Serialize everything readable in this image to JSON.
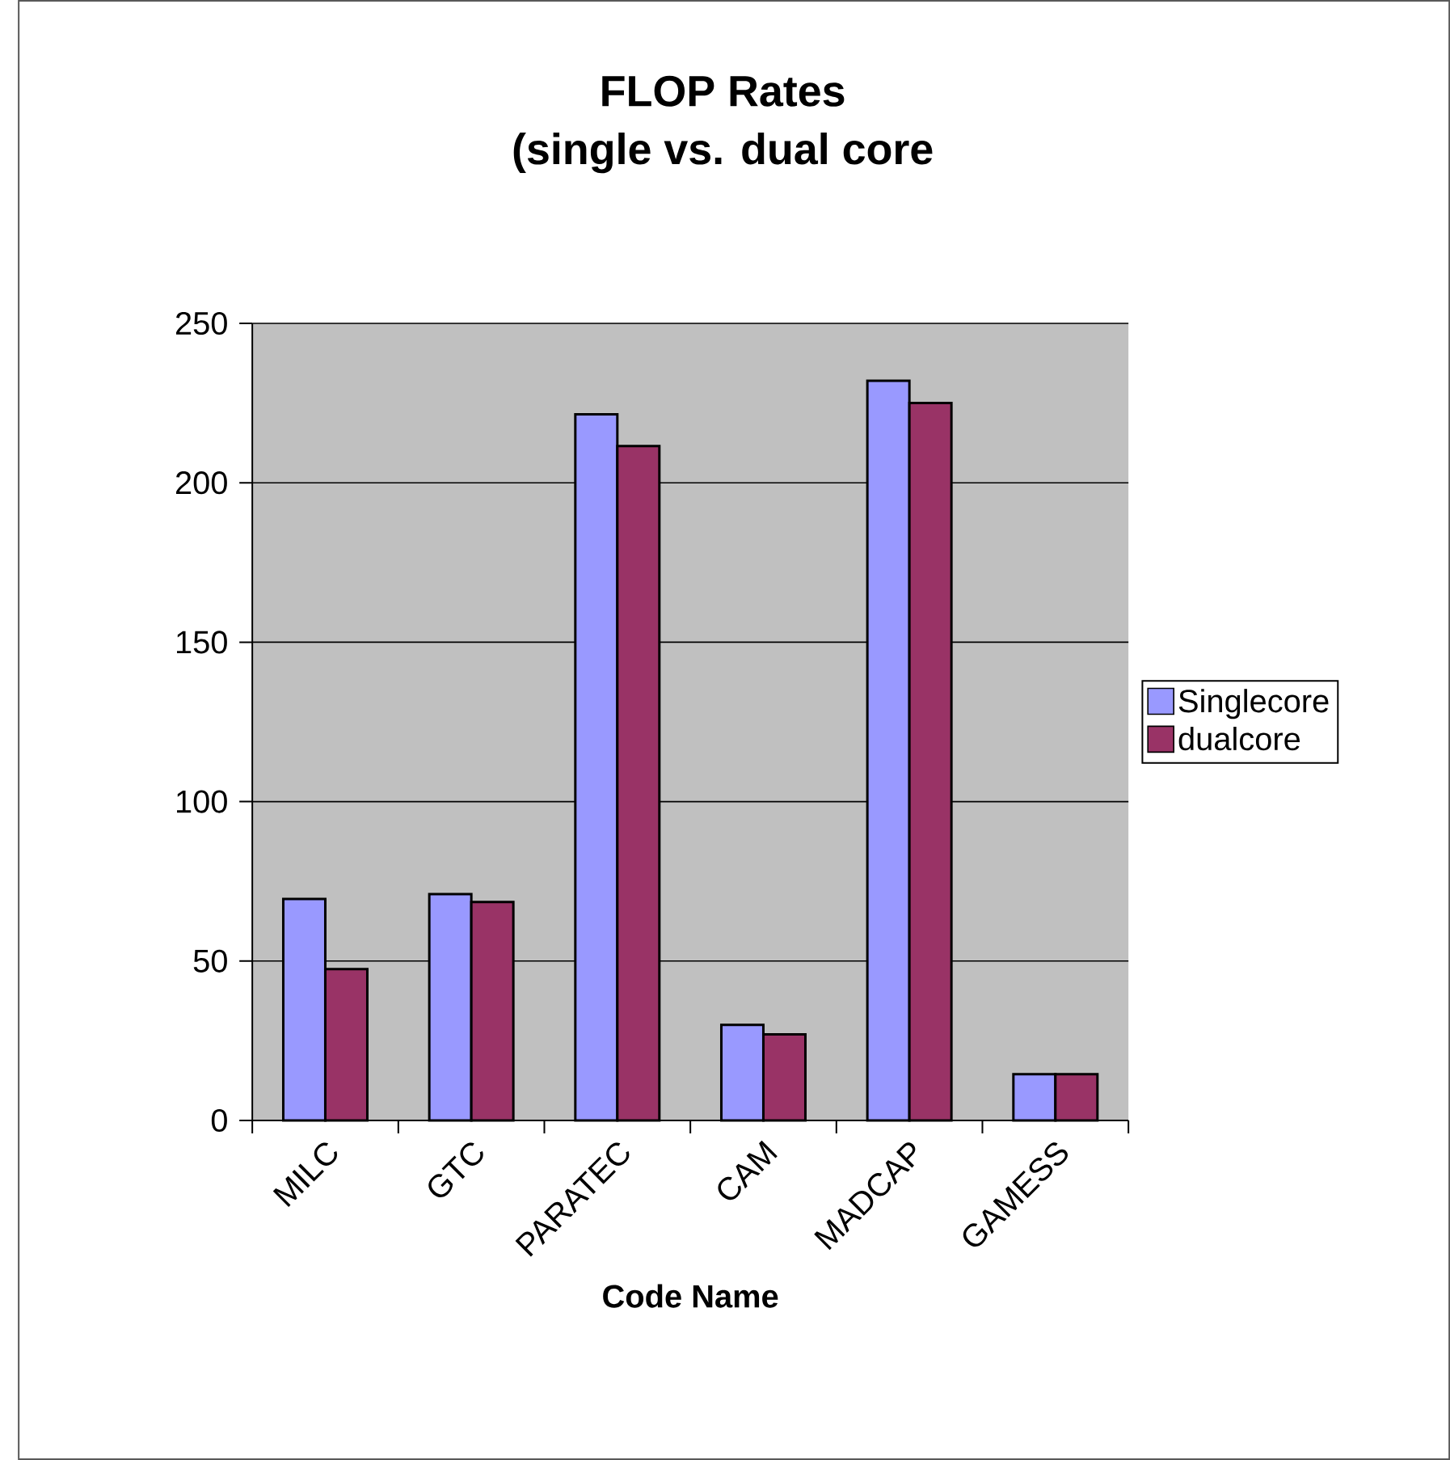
{
  "chart_data": {
    "type": "bar",
    "title": "FLOP Rates",
    "subtitle": "(single vs. dual core",
    "xlabel": "Code Name",
    "categories": [
      "MILC",
      "GTC",
      "PARATEC",
      "CAM",
      "MADCAP",
      "GAMESS"
    ],
    "series": [
      {
        "name": "Singlecore",
        "color": "#9999ff",
        "values": [
          69.5,
          71,
          221.5,
          30,
          232,
          14.5
        ]
      },
      {
        "name": "dualcore",
        "color": "#993366",
        "values": [
          47.5,
          68.5,
          211.5,
          27,
          225,
          14.5
        ]
      }
    ],
    "ylim": [
      0,
      250
    ],
    "yticks": [
      0,
      50,
      100,
      150,
      200,
      250
    ],
    "grid": "y",
    "legend": "right"
  }
}
